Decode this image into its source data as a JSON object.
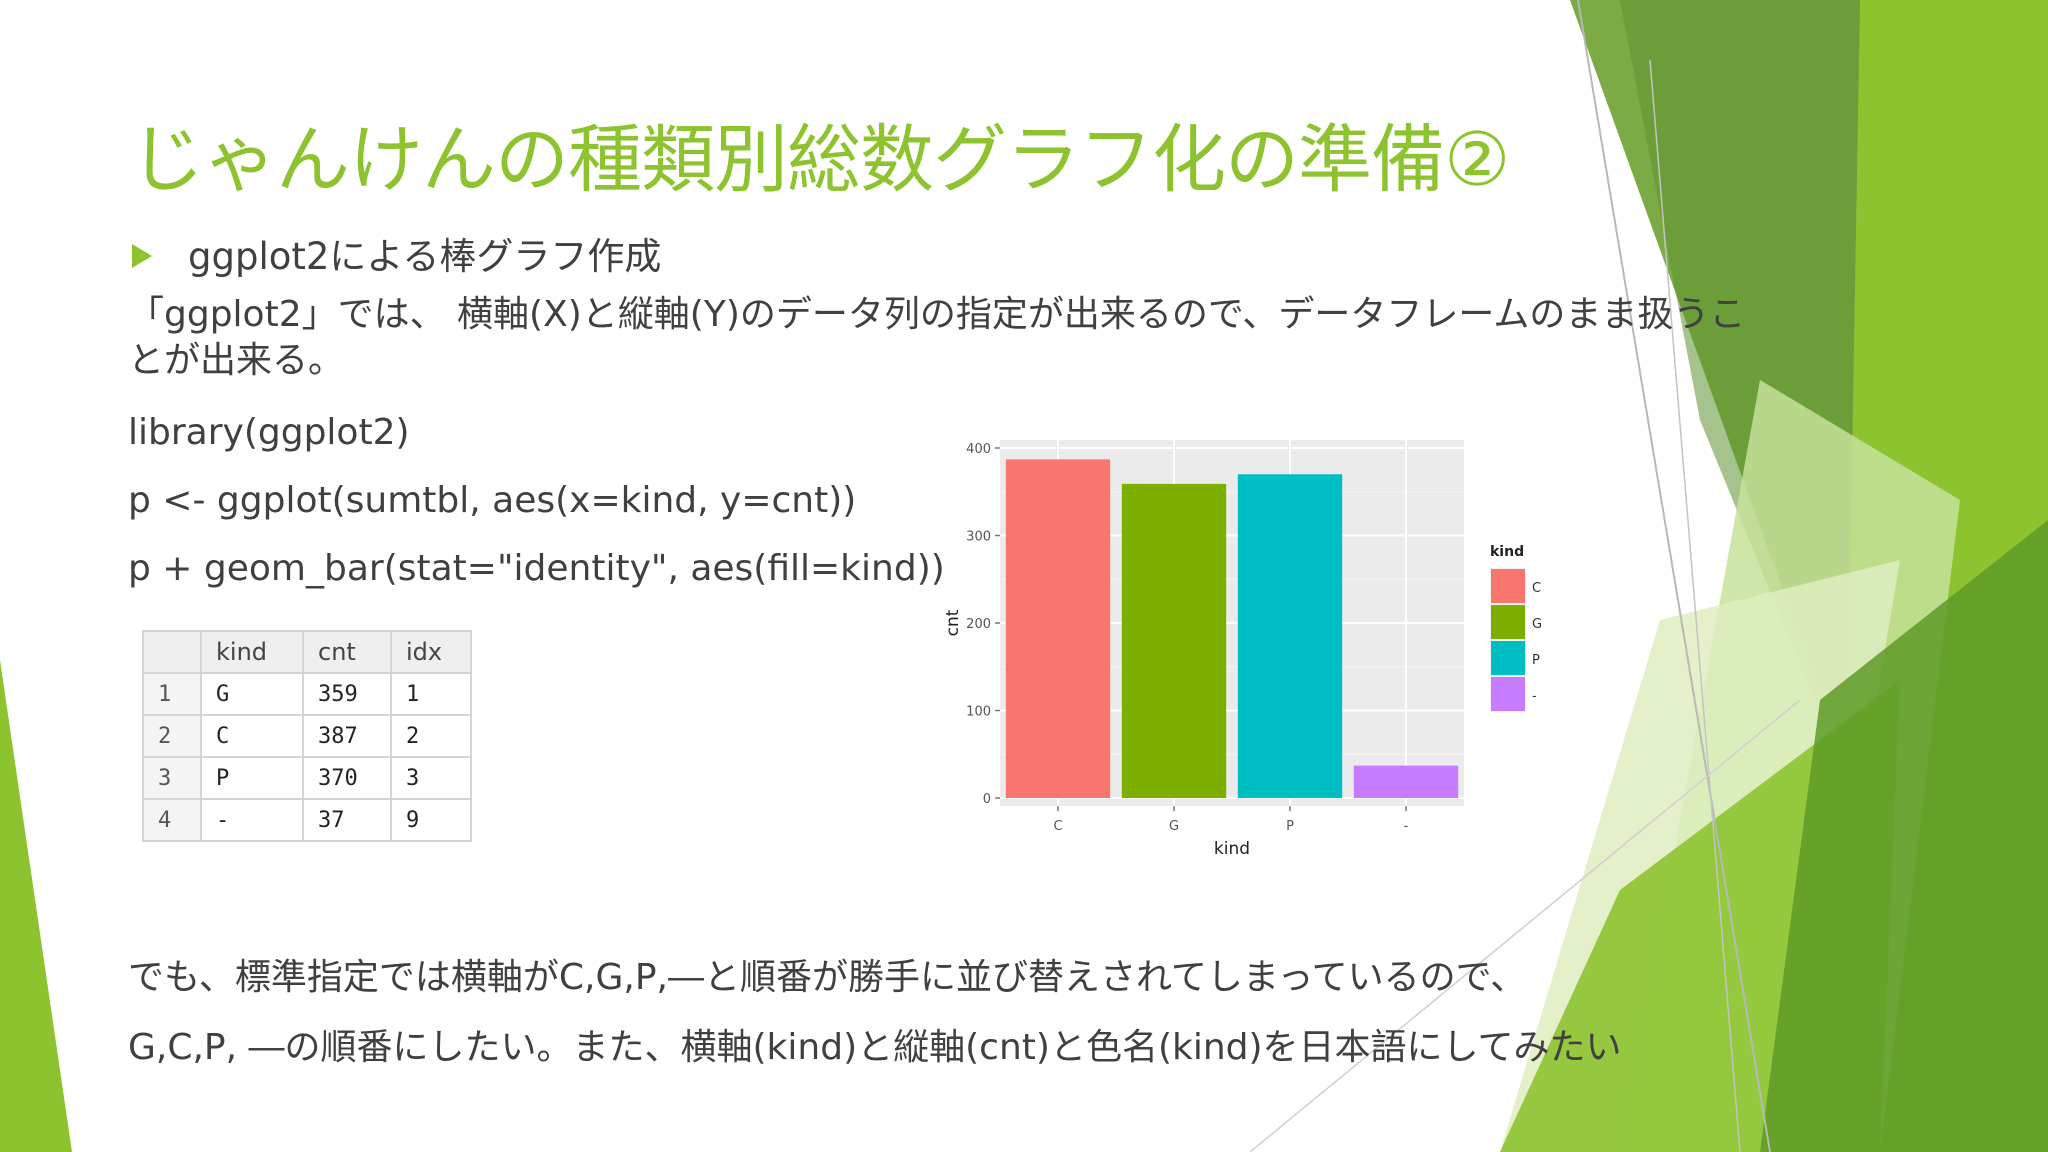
{
  "slide": {
    "title": "じゃんけんの種類別総数グラフ化の準備②",
    "bullet": "ggplot2による棒グラフ作成",
    "paragraph": "「ggplot2」では、 横軸(X)と縦軸(Y)のデータ列の指定が出来るので、データフレームのまま扱うことが出来る。",
    "code": [
      "library(ggplot2)",
      "p <- ggplot(sumtbl, aes(x=kind, y=cnt))",
      "p + geom_bar(stat=\"identity\", aes(fill=kind))"
    ],
    "footer": [
      "でも、標準指定では横軸がC,G,P,―と順番が勝手に並び替えされてしまっているので、",
      "G,C,P, ―の順番にしたい。また、横軸(kind)と縦軸(cnt)と色名(kind)を日本語にしてみたい"
    ]
  },
  "table": {
    "headers": [
      "",
      "kind",
      "cnt",
      "idx"
    ],
    "rows": [
      [
        "1",
        "G",
        "359",
        "1"
      ],
      [
        "2",
        "C",
        "387",
        "2"
      ],
      [
        "3",
        "P",
        "370",
        "3"
      ],
      [
        "4",
        "-",
        "37",
        "9"
      ]
    ]
  },
  "chart_data": {
    "type": "bar",
    "categories": [
      "C",
      "G",
      "P",
      "-"
    ],
    "values": [
      387,
      359,
      370,
      37
    ],
    "colors": [
      "#f8766d",
      "#7cae00",
      "#00bfc4",
      "#c77cff"
    ],
    "xlabel": "kind",
    "ylabel": "cnt",
    "ylim": [
      0,
      400
    ],
    "yticks": [
      0,
      100,
      200,
      300,
      400
    ],
    "grid": true,
    "legend": {
      "title": "kind",
      "entries": [
        "C",
        "G",
        "P",
        "-"
      ],
      "placement": "right"
    }
  },
  "theme": {
    "accent": "#8cc32f",
    "panel_bg": "#ebebeb"
  }
}
